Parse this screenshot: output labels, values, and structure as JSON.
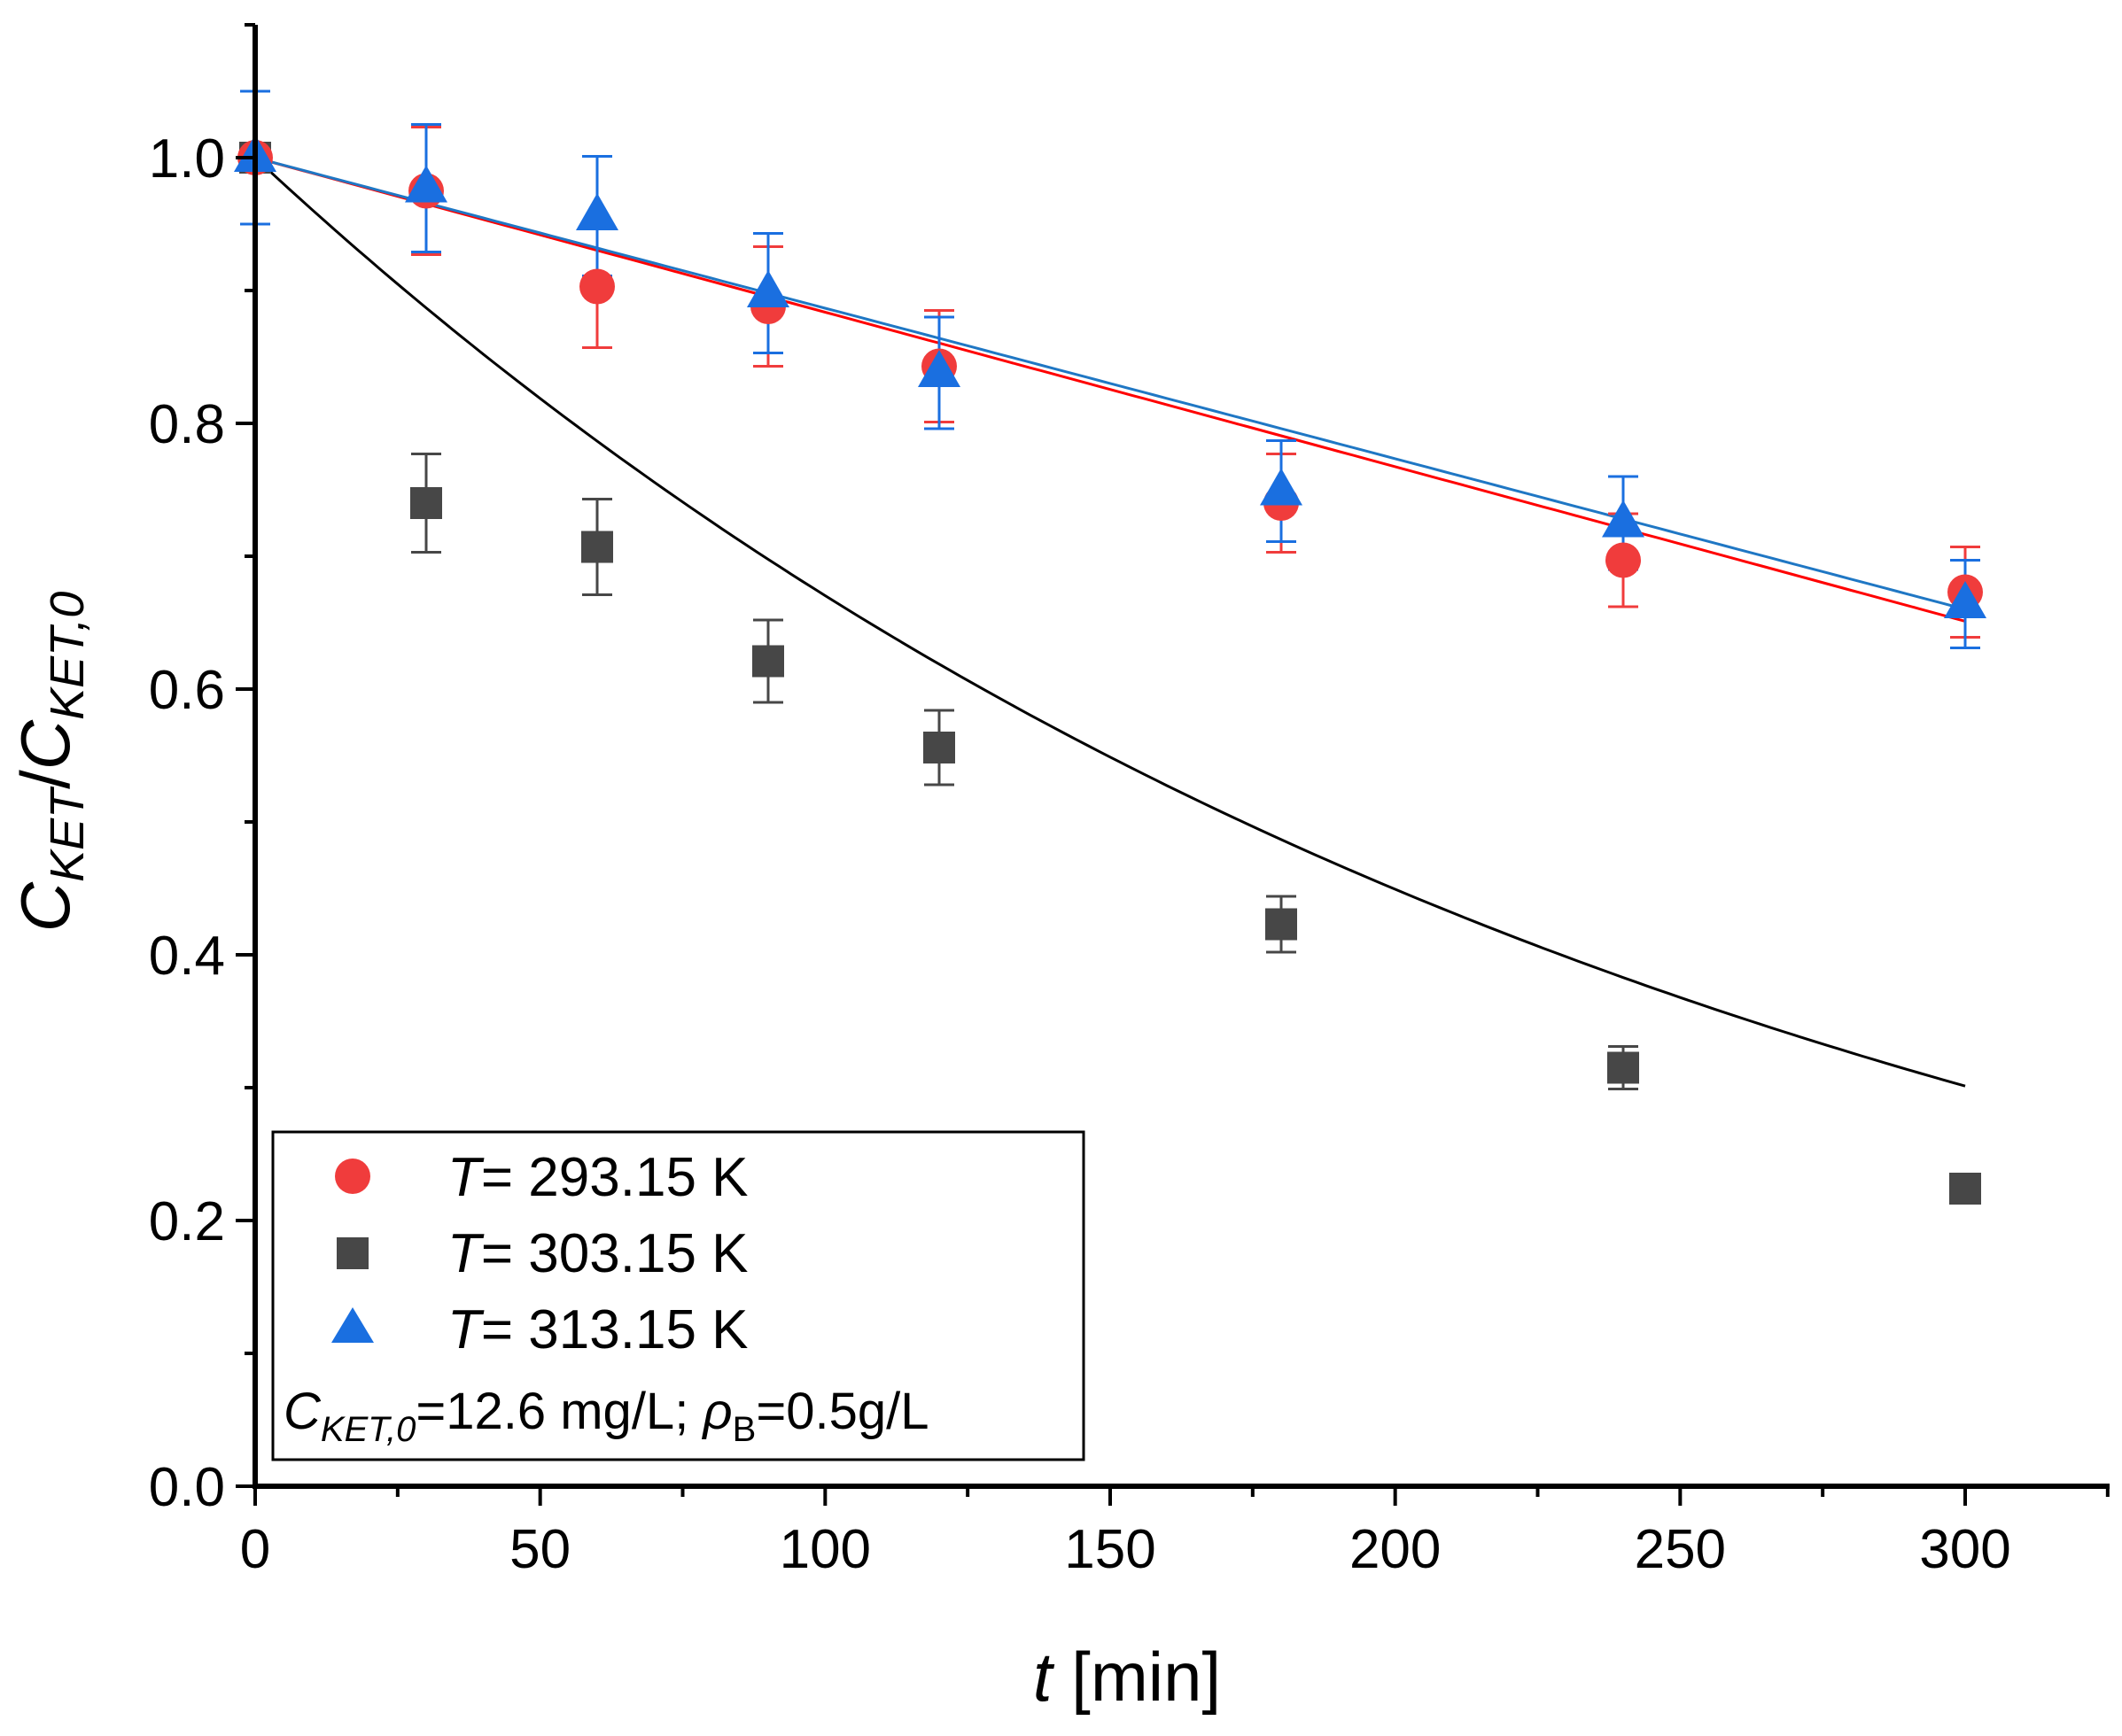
{
  "chart_data": {
    "type": "scatter",
    "title": "",
    "xlabel": {
      "var": "t",
      "unit": " [min]"
    },
    "ylabel": {
      "main": "C",
      "num_sub": "KET",
      "slash": "/",
      "den_main": "C",
      "den_sub": "KET,0"
    },
    "xlim": [
      0,
      325
    ],
    "ylim": [
      0,
      1.1
    ],
    "x_ticks": [
      0,
      50,
      100,
      150,
      200,
      250,
      300
    ],
    "x_tick_labels": [
      "0",
      "50",
      "100",
      "150",
      "200",
      "250",
      "300"
    ],
    "y_ticks": [
      0.0,
      0.2,
      0.4,
      0.6,
      0.8,
      1.0
    ],
    "y_tick_labels": [
      "0.0",
      "0.2",
      "0.4",
      "0.6",
      "0.8",
      "1.0"
    ],
    "grid": false,
    "legend_position": "bottom-left",
    "series": [
      {
        "name": "T= 293.15 K",
        "label_var": "T",
        "label_rest": "= 293.15 K",
        "marker": "circle",
        "color": "#f03c3c",
        "x": [
          0,
          30,
          60,
          90,
          120,
          180,
          240,
          300
        ],
        "y": [
          1.0,
          0.975,
          0.903,
          0.888,
          0.843,
          0.74,
          0.697,
          0.673
        ],
        "err": [
          0.05,
          0.048,
          0.046,
          0.045,
          0.042,
          0.037,
          0.035,
          0.034
        ],
        "fit": {
          "kind": "linear",
          "slope": -0.001163,
          "intercept": 1.0,
          "color": "#ff0000"
        }
      },
      {
        "name": "T= 303.15 K",
        "label_var": "T",
        "label_rest": "= 303.15 K",
        "marker": "square",
        "color": "#474747",
        "x": [
          0,
          30,
          60,
          90,
          120,
          180,
          240,
          300
        ],
        "y": [
          1.0,
          0.74,
          0.707,
          0.621,
          0.556,
          0.423,
          0.315,
          0.224
        ],
        "err": [
          0.05,
          0.037,
          0.036,
          0.031,
          0.028,
          0.021,
          0.016,
          0.011
        ],
        "fit": {
          "kind": "exponential",
          "k": 0.004,
          "a": 1.0,
          "color": "#000000"
        }
      },
      {
        "name": "T= 313.15 K",
        "label_var": "T",
        "label_rest": "= 313.15 K",
        "marker": "triangle",
        "color": "#1a6fe0",
        "x": [
          0,
          30,
          60,
          90,
          120,
          180,
          240,
          300
        ],
        "y": [
          1.0,
          0.977,
          0.956,
          0.898,
          0.838,
          0.749,
          0.725,
          0.664
        ],
        "err": [
          0.05,
          0.048,
          0.045,
          0.045,
          0.042,
          0.038,
          0.035,
          0.033
        ],
        "fit": {
          "kind": "linear",
          "slope": -0.001133,
          "intercept": 1.0,
          "color": "#1f77c4"
        }
      }
    ],
    "annotation": {
      "c_main": "C",
      "c_sub": "KET,0",
      "c_rest": "=12.6 mg/L; ",
      "rho": "ρ",
      "rho_sub": "B",
      "rho_rest": "=0.5g/L"
    }
  }
}
